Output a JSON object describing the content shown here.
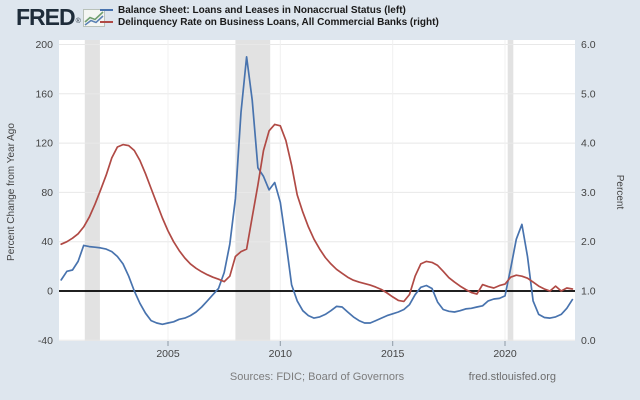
{
  "header": {
    "logo_text": "FRED",
    "logo_registered": "®",
    "legend": [
      {
        "label": "Balance Sheet: Loans and Leases in Nonaccrual Status (left)",
        "color": "#4873ae"
      },
      {
        "label": "Delinquency Rate on Business Loans, All Commercial Banks (right)",
        "color": "#b04a45"
      }
    ]
  },
  "footer": {
    "sources": "Sources: FDIC; Board of Governors",
    "site": "fred.stlouisfed.org"
  },
  "colors": {
    "background": "#dee6ee",
    "plot_background": "#ffffff",
    "recession_band": "#e2e2e2",
    "grid_horizontal": "#e8e8e8",
    "grid_vertical": "#f0f0f0",
    "zero_line": "#000000",
    "blue_series": "#4873ae",
    "red_series": "#b04a45",
    "tick_text": "#444444",
    "axis_title_text": "#444444",
    "tick_mark": "#8f9aa6"
  },
  "chart_data": {
    "type": "line",
    "x_range": [
      2000.15,
      2023.1
    ],
    "x_step": 0.25,
    "x_start": 2000.25,
    "x_ticks": [
      2005,
      2010,
      2015,
      2020
    ],
    "x_tick_labels": [
      "2005",
      "2010",
      "2015",
      "2020"
    ],
    "left_axis": {
      "label": "Percent Change from Year Ago",
      "range": [
        -40,
        200
      ],
      "ticks": [
        200,
        160,
        120,
        80,
        40,
        0,
        -40
      ],
      "tick_labels": [
        "200",
        "160",
        "120",
        "80",
        "40",
        "0",
        "-40"
      ]
    },
    "right_axis": {
      "label": "Percent",
      "range": [
        0,
        6
      ],
      "ticks": [
        6,
        5,
        4,
        3,
        2,
        1,
        0
      ],
      "tick_labels": [
        "6.0",
        "5.0",
        "4.0",
        "3.0",
        "2.0",
        "1.0",
        "0.0"
      ]
    },
    "zero_line_left_value": 0,
    "grid": true,
    "legend_position": "top",
    "recession_bands_years": [
      [
        2001.3,
        2001.97
      ],
      [
        2008.0,
        2009.55
      ],
      [
        2020.12,
        2020.37
      ]
    ],
    "series": [
      {
        "name": "Balance Sheet: Loans and Leases in Nonaccrual Status (left)",
        "axis": "left",
        "color": "#4873ae",
        "values": [
          9,
          16,
          17,
          24,
          37,
          36,
          35.5,
          35,
          34,
          32,
          28,
          22,
          12,
          0,
          -10,
          -18,
          -24,
          -26,
          -27,
          -26,
          -25,
          -23,
          -22,
          -20,
          -17,
          -13,
          -8,
          -3,
          2,
          15,
          38,
          75,
          145,
          190,
          155,
          100,
          93,
          82,
          88,
          72,
          40,
          5,
          -8,
          -16,
          -20,
          -22,
          -21,
          -19,
          -16,
          -12.5,
          -13,
          -17,
          -21,
          -24,
          -26,
          -26,
          -24,
          -22,
          -20,
          -18.5,
          -17,
          -15,
          -11,
          -3,
          3,
          4.5,
          2,
          -9,
          -15,
          -16.5,
          -17,
          -16,
          -14.5,
          -14,
          -13,
          -12,
          -8,
          -6.5,
          -6,
          -4,
          18,
          42,
          54,
          28,
          -8,
          -19,
          -21.5,
          -22,
          -21,
          -19,
          -14,
          -7
        ]
      },
      {
        "name": "Delinquency Rate on Business Loans, All Commercial Banks (right)",
        "axis": "right",
        "color": "#b04a45",
        "values": [
          1.95,
          2.0,
          2.07,
          2.16,
          2.3,
          2.5,
          2.76,
          3.05,
          3.35,
          3.7,
          3.92,
          3.97,
          3.95,
          3.85,
          3.65,
          3.38,
          3.08,
          2.78,
          2.48,
          2.22,
          2.0,
          1.82,
          1.67,
          1.55,
          1.46,
          1.39,
          1.33,
          1.28,
          1.24,
          1.19,
          1.3,
          1.7,
          1.8,
          1.85,
          2.5,
          3.15,
          3.85,
          4.25,
          4.38,
          4.35,
          4.05,
          3.55,
          2.95,
          2.6,
          2.3,
          2.05,
          1.85,
          1.68,
          1.55,
          1.44,
          1.36,
          1.28,
          1.22,
          1.18,
          1.15,
          1.12,
          1.08,
          1.03,
          0.96,
          0.88,
          0.81,
          0.79,
          0.93,
          1.3,
          1.55,
          1.6,
          1.58,
          1.52,
          1.4,
          1.27,
          1.18,
          1.1,
          1.03,
          0.97,
          0.94,
          1.13,
          1.09,
          1.06,
          1.11,
          1.14,
          1.28,
          1.32,
          1.3,
          1.26,
          1.18,
          1.1,
          1.04,
          1.0,
          1.1,
          1.0,
          1.06,
          1.04
        ]
      }
    ]
  }
}
